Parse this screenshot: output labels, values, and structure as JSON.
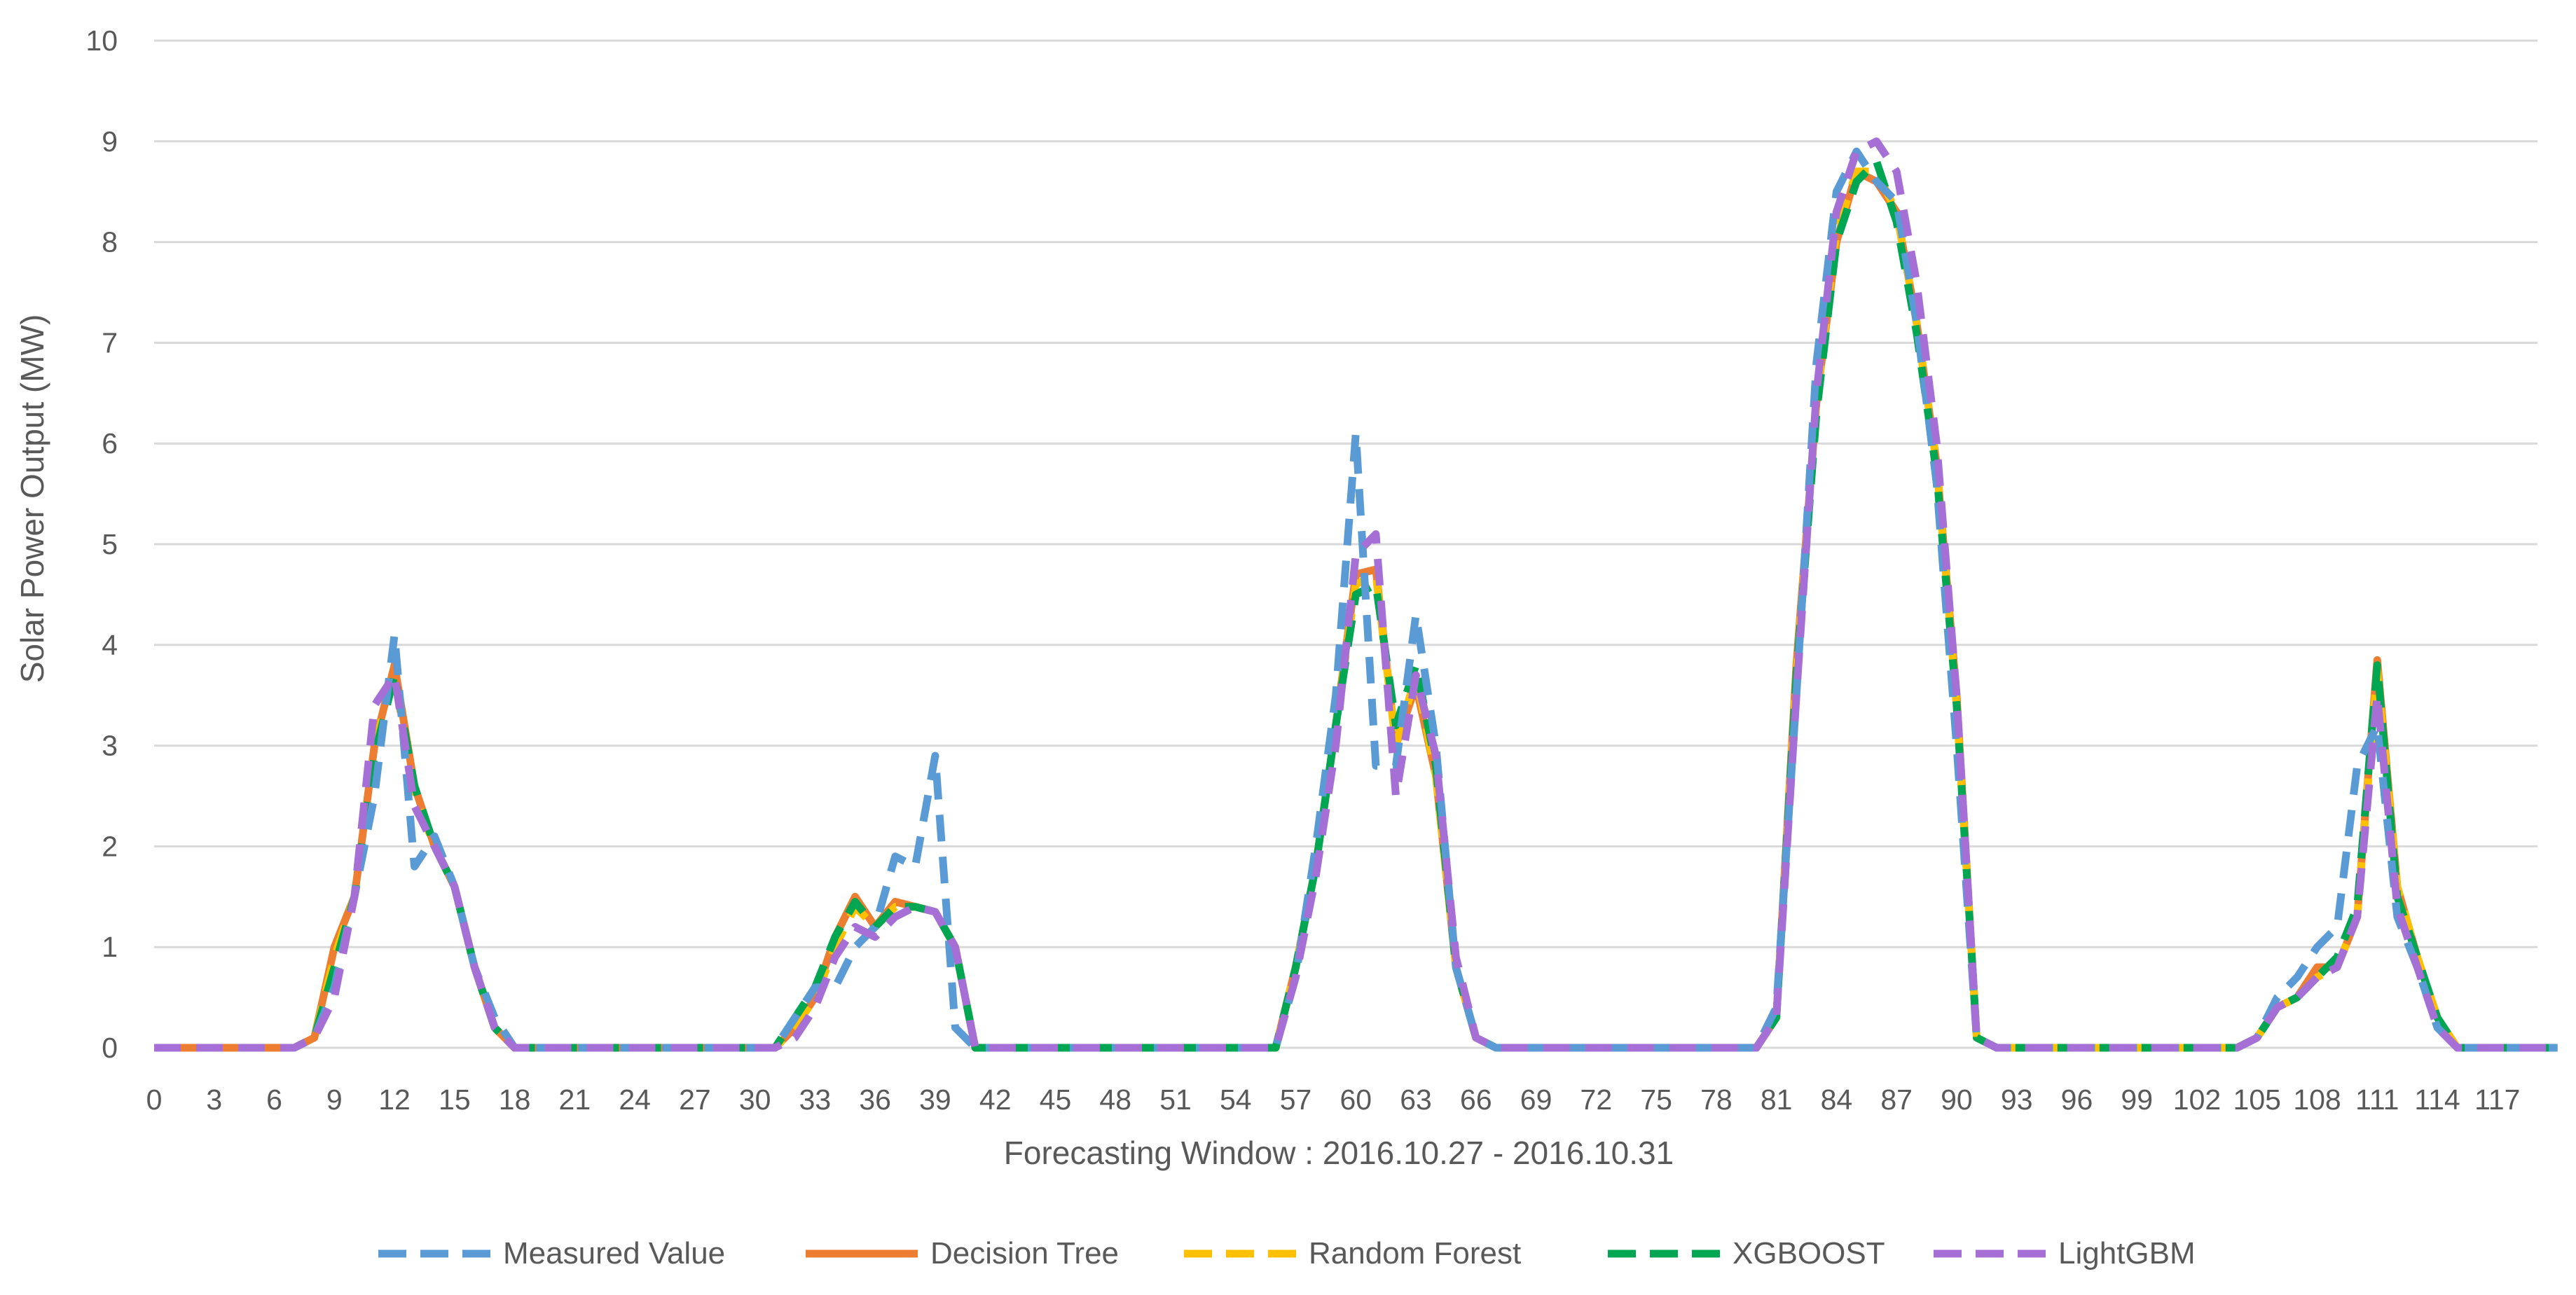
{
  "chart_data": {
    "type": "line",
    "title": "",
    "xlabel": "Forecasting Window : 2016.10.27 - 2016.10.31",
    "ylabel": "Solar Power Output (MW)",
    "ylim": [
      0,
      10
    ],
    "yticks": [
      0,
      1,
      2,
      3,
      4,
      5,
      6,
      7,
      8,
      9,
      10
    ],
    "xlim": [
      0,
      119
    ],
    "x_tick_labels": [
      "0",
      "3",
      "6",
      "9",
      "12",
      "15",
      "18",
      "21",
      "24",
      "27",
      "30",
      "33",
      "36",
      "39",
      "42",
      "45",
      "48",
      "51",
      "54",
      "57",
      "60",
      "63",
      "66",
      "69",
      "72",
      "75",
      "78",
      "81",
      "84",
      "87",
      "90",
      "93",
      "96",
      "99",
      "102",
      "105",
      "108",
      "111",
      "114",
      "117"
    ],
    "grid": "horizontal",
    "legend_position": "bottom",
    "series": [
      {
        "name": "Measured Value",
        "color": "#5B9BD5",
        "dash": "dashed",
        "values": [
          0,
          0,
          0,
          0,
          0,
          0,
          0,
          0,
          0.1,
          0.6,
          1.5,
          2.5,
          4.1,
          1.8,
          2.1,
          1.6,
          0.8,
          0.3,
          0,
          0,
          0,
          0,
          0,
          0,
          0,
          0,
          0,
          0,
          0,
          0,
          0,
          0,
          0.3,
          0.6,
          0.6,
          1.0,
          1.2,
          1.9,
          1.8,
          2.9,
          0.2,
          0,
          0,
          0,
          0,
          0,
          0,
          0,
          0,
          0,
          0,
          0,
          0,
          0,
          0,
          0,
          0,
          0.7,
          2.0,
          3.5,
          6.1,
          2.8,
          2.8,
          4.3,
          3.0,
          0.8,
          0.1,
          0,
          0,
          0,
          0,
          0,
          0,
          0,
          0,
          0,
          0,
          0,
          0,
          0,
          0,
          0.4,
          3.5,
          6.8,
          8.5,
          8.9,
          8.6,
          8.4,
          7.2,
          5.6,
          3.0,
          0.1,
          0,
          0,
          0,
          0,
          0,
          0,
          0,
          0,
          0,
          0,
          0,
          0,
          0,
          0.1,
          0.5,
          0.7,
          1.0,
          1.2,
          2.8,
          3.2,
          1.3,
          0.8,
          0.2,
          0,
          0,
          0,
          0,
          0,
          0
        ]
      },
      {
        "name": "Decision Tree",
        "color": "#ED7D31",
        "dash": "solid",
        "values": [
          0,
          0,
          0,
          0,
          0,
          0,
          0,
          0,
          0.1,
          1.0,
          1.5,
          3.0,
          3.8,
          2.6,
          2.0,
          1.6,
          0.8,
          0.2,
          0,
          0,
          0,
          0,
          0,
          0,
          0,
          0,
          0,
          0,
          0,
          0,
          0,
          0,
          0.2,
          0.5,
          1.1,
          1.5,
          1.2,
          1.45,
          1.4,
          1.35,
          1.0,
          0,
          0,
          0,
          0,
          0,
          0,
          0,
          0,
          0,
          0,
          0,
          0,
          0,
          0,
          0,
          0,
          0.8,
          1.8,
          3.2,
          4.7,
          4.75,
          3.0,
          3.6,
          2.7,
          0.8,
          0.1,
          0,
          0,
          0,
          0,
          0,
          0,
          0,
          0,
          0,
          0,
          0,
          0,
          0,
          0,
          0.3,
          3.8,
          6.4,
          8.0,
          8.7,
          8.6,
          8.3,
          7.2,
          5.8,
          3.5,
          0.1,
          0,
          0,
          0,
          0,
          0,
          0,
          0,
          0,
          0,
          0,
          0,
          0,
          0,
          0.1,
          0.4,
          0.5,
          0.8,
          0.8,
          1.3,
          3.85,
          1.6,
          0.9,
          0.3,
          0,
          0,
          0,
          0,
          0,
          0
        ]
      },
      {
        "name": "Random Forest",
        "color": "#FFC000",
        "dash": "dashed",
        "values": [
          0,
          0,
          0,
          0,
          0,
          0,
          0,
          0,
          0.1,
          0.9,
          1.5,
          3.0,
          3.7,
          2.5,
          2.0,
          1.6,
          0.8,
          0.2,
          0,
          0,
          0,
          0,
          0,
          0,
          0,
          0,
          0,
          0,
          0,
          0,
          0,
          0,
          0.2,
          0.5,
          1.0,
          1.4,
          1.2,
          1.4,
          1.4,
          1.35,
          1.0,
          0,
          0,
          0,
          0,
          0,
          0,
          0,
          0,
          0,
          0,
          0,
          0,
          0,
          0,
          0,
          0,
          0.8,
          1.8,
          3.2,
          4.6,
          4.7,
          3.0,
          3.7,
          2.7,
          0.8,
          0.1,
          0,
          0,
          0,
          0,
          0,
          0,
          0,
          0,
          0,
          0,
          0,
          0,
          0,
          0,
          0.3,
          3.7,
          6.4,
          8.1,
          8.7,
          8.7,
          8.3,
          7.2,
          5.8,
          3.4,
          0.1,
          0,
          0,
          0,
          0,
          0,
          0,
          0,
          0,
          0,
          0,
          0,
          0,
          0,
          0.1,
          0.4,
          0.5,
          0.7,
          0.8,
          1.3,
          3.75,
          1.6,
          0.9,
          0.3,
          0,
          0,
          0,
          0,
          0,
          0
        ]
      },
      {
        "name": "XGBOOST",
        "color": "#00A651",
        "dash": "dashed",
        "values": [
          0,
          0,
          0,
          0,
          0,
          0,
          0,
          0,
          0.1,
          0.8,
          1.5,
          2.9,
          3.7,
          2.6,
          2.0,
          1.6,
          0.8,
          0.2,
          0,
          0,
          0,
          0,
          0,
          0,
          0,
          0,
          0,
          0,
          0,
          0,
          0,
          0,
          0.3,
          0.6,
          1.1,
          1.45,
          1.2,
          1.4,
          1.4,
          1.35,
          1.0,
          0,
          0,
          0,
          0,
          0,
          0,
          0,
          0,
          0,
          0,
          0,
          0,
          0,
          0,
          0,
          0,
          0.8,
          1.8,
          3.2,
          4.5,
          4.6,
          3.2,
          3.8,
          2.8,
          0.8,
          0.1,
          0,
          0,
          0,
          0,
          0,
          0,
          0,
          0,
          0,
          0,
          0,
          0,
          0,
          0,
          0.3,
          3.7,
          6.3,
          8.0,
          8.6,
          8.8,
          8.2,
          7.1,
          5.7,
          3.4,
          0.1,
          0,
          0,
          0,
          0,
          0,
          0,
          0,
          0,
          0,
          0,
          0,
          0,
          0,
          0.1,
          0.4,
          0.5,
          0.7,
          0.9,
          1.4,
          3.8,
          1.5,
          0.9,
          0.3,
          0,
          0,
          0,
          0,
          0,
          0
        ]
      },
      {
        "name": "LightGBM",
        "color": "#A66FD6",
        "dash": "dashed",
        "values": [
          0,
          0,
          0,
          0,
          0,
          0,
          0,
          0,
          0.1,
          0.5,
          1.5,
          3.4,
          3.7,
          2.4,
          2.0,
          1.6,
          0.8,
          0.2,
          0,
          0,
          0,
          0,
          0,
          0,
          0,
          0,
          0,
          0,
          0,
          0,
          0,
          0,
          0.1,
          0.4,
          0.9,
          1.2,
          1.1,
          1.3,
          1.4,
          1.35,
          1.0,
          0,
          0,
          0,
          0,
          0,
          0,
          0,
          0,
          0,
          0,
          0,
          0,
          0,
          0,
          0,
          0,
          0.7,
          1.7,
          3.0,
          4.9,
          5.1,
          2.5,
          3.7,
          2.9,
          0.9,
          0.1,
          0,
          0,
          0,
          0,
          0,
          0,
          0,
          0,
          0,
          0,
          0,
          0,
          0,
          0,
          0.3,
          3.5,
          6.5,
          8.3,
          8.9,
          9.0,
          8.7,
          7.6,
          6.0,
          3.5,
          0.1,
          0,
          0,
          0,
          0,
          0,
          0,
          0,
          0,
          0,
          0,
          0,
          0,
          0,
          0.1,
          0.4,
          0.5,
          0.7,
          0.8,
          1.3,
          3.5,
          1.4,
          0.8,
          0.2,
          0,
          0,
          0,
          0,
          0,
          0
        ]
      }
    ]
  }
}
